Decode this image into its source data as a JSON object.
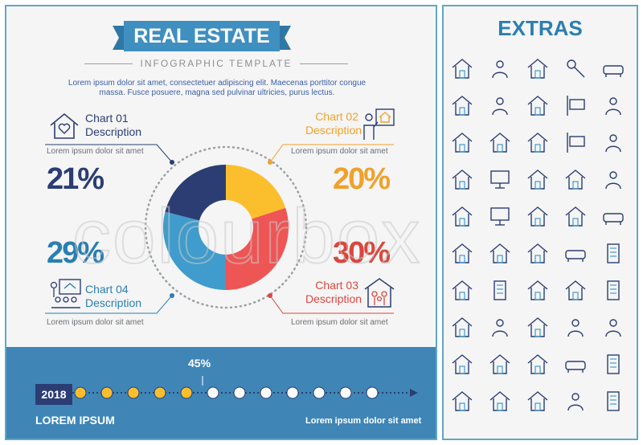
{
  "header": {
    "title": "REAL ESTATE",
    "subtitle": "INFOGRAPHIC TEMPLATE",
    "intro_line1": "Lorem ipsum dolor sit amet, consectetuer adipiscing elit. Maecenas porttitor congue",
    "intro_line2": "massa. Fusce posuere, magna sed pulvinar ultricies, purus lectus."
  },
  "charts": [
    {
      "label1": "Chart 01",
      "label2": "Description",
      "lorem": "Lorem ipsum dolor sit amet",
      "percent": "21%",
      "color": "#2b3d73",
      "icon": "house-heart-icon"
    },
    {
      "label1": "Chart 02",
      "label2": "Description",
      "lorem": "Lorem ipsum dolor sit amet",
      "percent": "20%",
      "color": "#f0a12c",
      "icon": "agent-presenting-house-icon"
    },
    {
      "label1": "Chart 03",
      "label2": "Description",
      "lorem": "Lorem ipsum dolor sit amet",
      "percent": "30%",
      "color": "#d9473f",
      "icon": "family-house-icon"
    },
    {
      "label1": "Chart 04",
      "label2": "Description",
      "lorem": "Lorem ipsum dolor sit amet",
      "percent": "29%",
      "color": "#2a7fb0",
      "icon": "presentation-audience-icon"
    }
  ],
  "donut": {
    "segments": [
      {
        "value": 20,
        "color": "#fbbf2e"
      },
      {
        "value": 30,
        "color": "#ee5555"
      },
      {
        "value": 29,
        "color": "#3f9ccc"
      },
      {
        "value": 21,
        "color": "#2b3d73"
      }
    ]
  },
  "timeline": {
    "year": "2018",
    "progress_label": "45%",
    "progress": 0.45,
    "title": "LOREM IPSUM",
    "caption": "Lorem ipsum dolor sit amet"
  },
  "extras": {
    "title": "EXTRAS",
    "icons": [
      "house-icon",
      "team-icon",
      "phone-house-icon",
      "key-icon",
      "sofa-icon",
      "house-icon",
      "hierarchy-icon",
      "mobile-house-icon",
      "for-sale-sign-icon",
      "shower-icon",
      "house-thumbs-up-icon",
      "house-agent-icon",
      "monitor-house-icon",
      "for-rent-sign-icon",
      "floor-plan-icon",
      "house-heart-icon",
      "agent-board-icon",
      "laptop-house-icon",
      "team-house-icon",
      "seesaw-money-icon",
      "piggy-bank-house-icon",
      "presentation-icon",
      "easel-house-icon",
      "house-key-icon",
      "bed-icon",
      "handshake-house-icon",
      "house-cycle-icon",
      "new-house-icon",
      "car-icon",
      "building-icon",
      "house-dollar-icon",
      "city-icon",
      "sale-house-icon",
      "family-house-icon",
      "building-growth-icon",
      "house-dollar-down-icon",
      "graph-icon",
      "house-people-icon",
      "store-icon",
      "door-icon",
      "house-icon",
      "cart-house-icon",
      "house-target-icon",
      "bathtub-icon",
      "office-building-icon",
      "umbrella-house-icon",
      "search-house-icon",
      "document-house-icon",
      "pool-icon",
      "apartment-icon"
    ]
  },
  "colors": {
    "accent": "#3f86b6",
    "navy": "#2b3d73",
    "orange": "#f0a12c",
    "red": "#d9473f",
    "teal": "#2a7fb0"
  },
  "watermark": "colourbox"
}
